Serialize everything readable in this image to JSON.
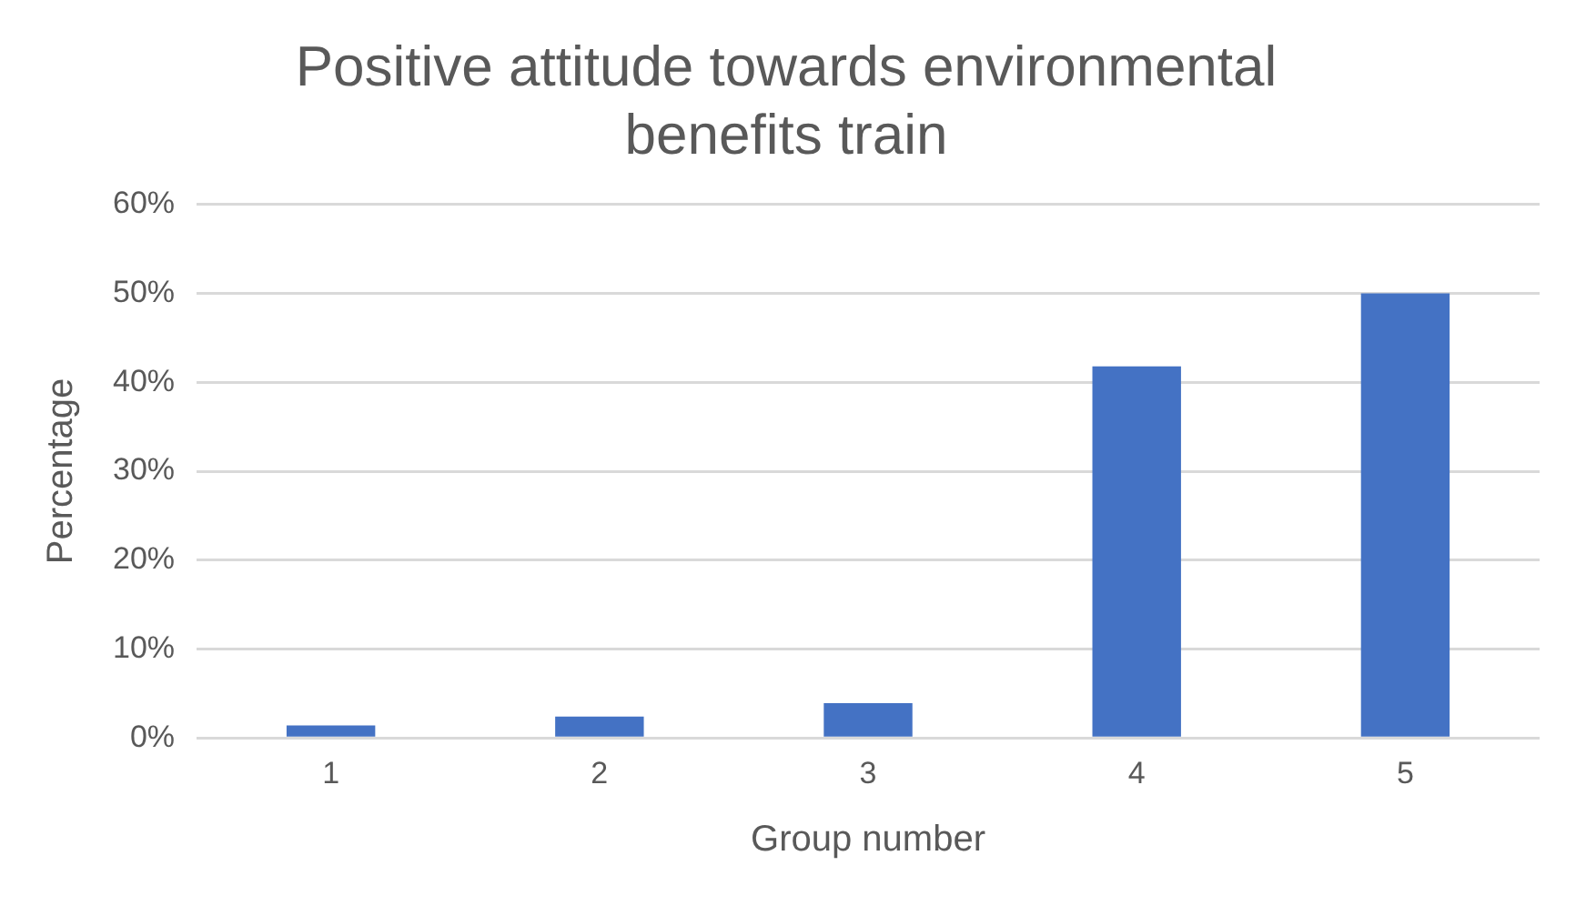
{
  "chart_data": {
    "type": "bar",
    "title": [
      "Positive attitude towards environmental",
      "benefits train"
    ],
    "xlabel": "Group number",
    "ylabel": "Percentage",
    "categories": [
      "1",
      "2",
      "3",
      "4",
      "5"
    ],
    "values": [
      1.4,
      2.4,
      3.9,
      41.8,
      50
    ],
    "color": "#4472c4",
    "ylim": [
      0,
      60
    ],
    "yticks": [
      {
        "value": 0,
        "label": "0%"
      },
      {
        "value": 10,
        "label": "10%"
      },
      {
        "value": 20,
        "label": "20%"
      },
      {
        "value": 30,
        "label": "30%"
      },
      {
        "value": 40,
        "label": "40%"
      },
      {
        "value": 50,
        "label": "50%"
      },
      {
        "value": 60,
        "label": "60%"
      }
    ],
    "grid": "y"
  }
}
